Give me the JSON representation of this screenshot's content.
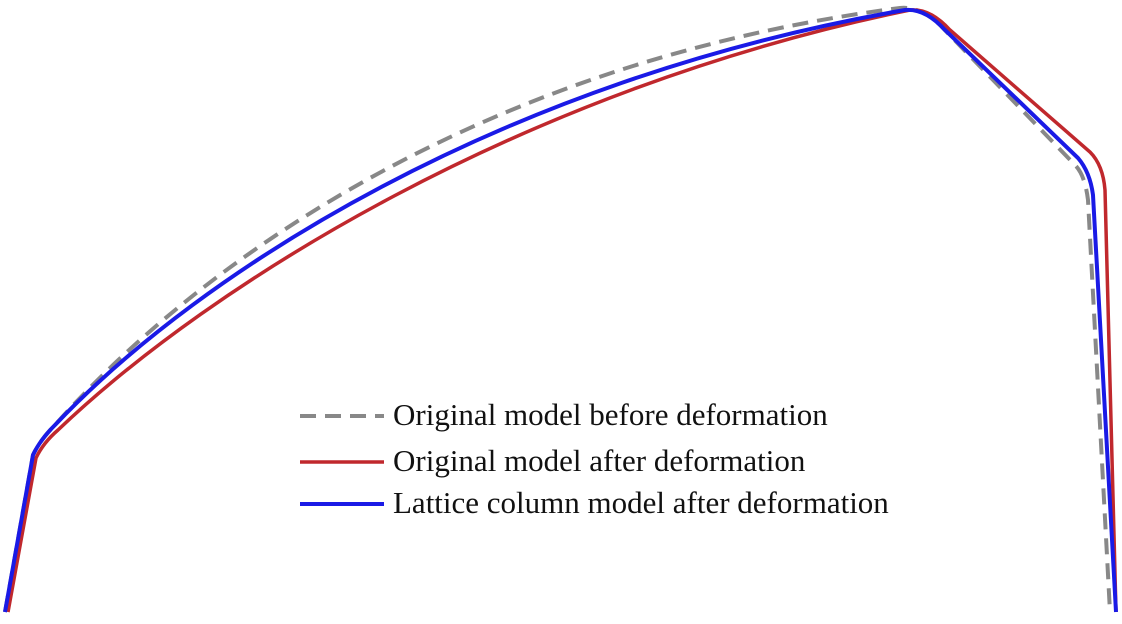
{
  "legend": {
    "items": [
      {
        "label": "Original model before deformation"
      },
      {
        "label": "Original model after deformation"
      },
      {
        "label": "Lattice column model after deformation"
      }
    ]
  }
}
